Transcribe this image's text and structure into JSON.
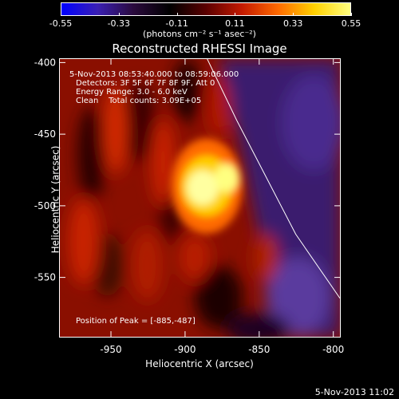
{
  "colorbar": {
    "gradient": [
      "#0000ff",
      "#3a1fb3",
      "#2a0a3c",
      "#000000",
      "#5a0000",
      "#c41a00",
      "#ff6a00",
      "#ffd000",
      "#ffff80"
    ],
    "ticks": [
      "-0.55",
      "-0.33",
      "-0.11",
      "0.11",
      "0.33",
      "0.55"
    ],
    "unit": "(photons cm⁻² s⁻¹ asec⁻²)"
  },
  "title": "Reconstructed RHESSI Image",
  "overlay": {
    "line1": "5-Nov-2013 08:53:40.000 to 08:59:06.000",
    "line2": "Detectors: 3F 5F 6F 7F 8F 9F, Att 0",
    "line3": "Energy Range: 3.0 - 6.0 keV",
    "line4": "Clean    Total counts: 3.09E+05",
    "peak": "Position of Peak = [-885,-487]"
  },
  "chart_data": {
    "type": "heatmap",
    "title": "Reconstructed RHESSI Image",
    "xlabel": "Heliocentric X (arcsec)",
    "ylabel": "Heliocentric Y (arcsec)",
    "xlim": [
      -985,
      -795
    ],
    "ylim": [
      -592,
      -397
    ],
    "xticks": [
      -950,
      -900,
      -850,
      -800
    ],
    "xtick_labels": [
      "-950",
      "-900",
      "-850",
      "-800"
    ],
    "yticks": [
      -400,
      -450,
      -500,
      -550
    ],
    "ytick_labels": [
      "-400",
      "-450",
      "-500",
      "-550"
    ],
    "peak": [
      -885,
      -487
    ],
    "limb_points": [
      [
        -885,
        -397
      ],
      [
        -865,
        -440
      ],
      [
        -845,
        -480
      ],
      [
        -825,
        -520
      ],
      [
        -795,
        -565
      ]
    ]
  },
  "timestamp": "5-Nov-2013 11:02"
}
